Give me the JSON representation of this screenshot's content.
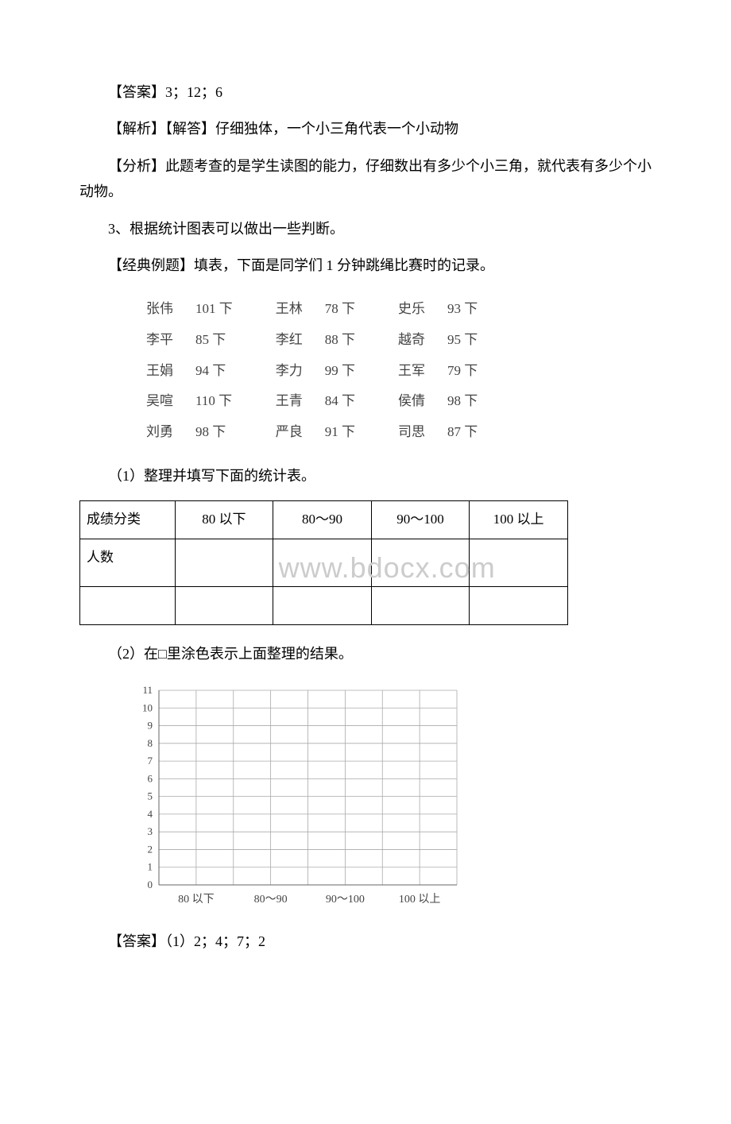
{
  "answer1": "【答案】3；12；6",
  "explain1": "【解析】【解答】仔细独体，一个小三角代表一个小动物",
  "analysis1": "【分析】此题考查的是学生读图的能力，仔细数出有多少个小三角，就代表有多少个小动物。",
  "point3": "3、根据统计图表可以做出一些判断。",
  "example_intro": "【经典例题】填表，下面是同学们 1 分钟跳绳比赛时的记录。",
  "records": {
    "rows": [
      [
        {
          "name": "张伟",
          "val": "101 下"
        },
        {
          "name": "王林",
          "val": "78 下"
        },
        {
          "name": "史乐",
          "val": "93 下"
        }
      ],
      [
        {
          "name": "李平",
          "val": "85 下"
        },
        {
          "name": "李红",
          "val": "88 下"
        },
        {
          "name": "越奇",
          "val": "95 下"
        }
      ],
      [
        {
          "name": "王娟",
          "val": "94 下"
        },
        {
          "name": "李力",
          "val": "99 下"
        },
        {
          "name": "王军",
          "val": "79 下"
        }
      ],
      [
        {
          "name": "吴喧",
          "val": "110 下"
        },
        {
          "name": "王青",
          "val": "84 下"
        },
        {
          "name": "侯倩",
          "val": "98 下"
        }
      ],
      [
        {
          "name": "刘勇",
          "val": "98 下"
        },
        {
          "name": "严良",
          "val": "91 下"
        },
        {
          "name": "司思",
          "val": "87 下"
        }
      ]
    ]
  },
  "q1": "（1）整理并填写下面的统计表。",
  "stats_table": {
    "header_label": "成绩分类",
    "row_label": "人数",
    "cols": [
      "80 以下",
      "80～90",
      "90～100",
      "100 以上"
    ]
  },
  "watermark": "www.bdocx.com",
  "q2": "（2）在□里涂色表示上面整理的结果。",
  "chart": {
    "type": "bar",
    "categories": [
      "80 以下",
      "80～90",
      "90～100",
      "100 以上"
    ],
    "ylim": [
      0,
      11
    ],
    "ytick_step": 1,
    "yticks": [
      0,
      1,
      2,
      3,
      4,
      5,
      6,
      7,
      8,
      9,
      10,
      11
    ],
    "grid_color": "#aaaaaa",
    "axis_color": "#666666",
    "background_color": "#ffffff",
    "col_splits": 2,
    "label_fontsize": 14,
    "tick_fontsize": 13
  },
  "answer2": "【答案】（1）2；4；7；2"
}
